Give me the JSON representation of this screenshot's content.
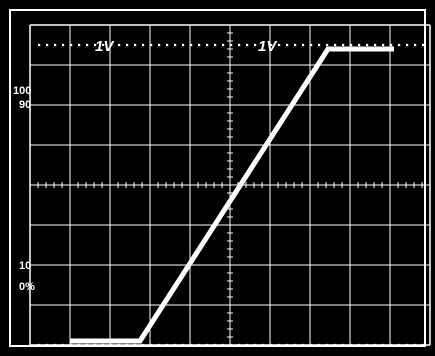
{
  "channel_labels": {
    "ch1": "1V",
    "ch2": "1V"
  },
  "level_labels": {
    "p100": "100",
    "p90": "90",
    "p10": "10",
    "p0": "0%"
  },
  "colors": {
    "screen": "#000000",
    "graticule": "#ffffff",
    "trace": "#ffffff",
    "border": "#ffffff"
  },
  "graticule": {
    "divisions_x": 10,
    "divisions_y": 8,
    "minor_ticks_per_div": 5
  },
  "trace": {
    "points": [
      {
        "x": 1.0,
        "y": 0.1
      },
      {
        "x": 2.75,
        "y": 0.1
      },
      {
        "x": 7.45,
        "y": 7.4
      },
      {
        "x": 9.1,
        "y": 7.4
      }
    ]
  }
}
